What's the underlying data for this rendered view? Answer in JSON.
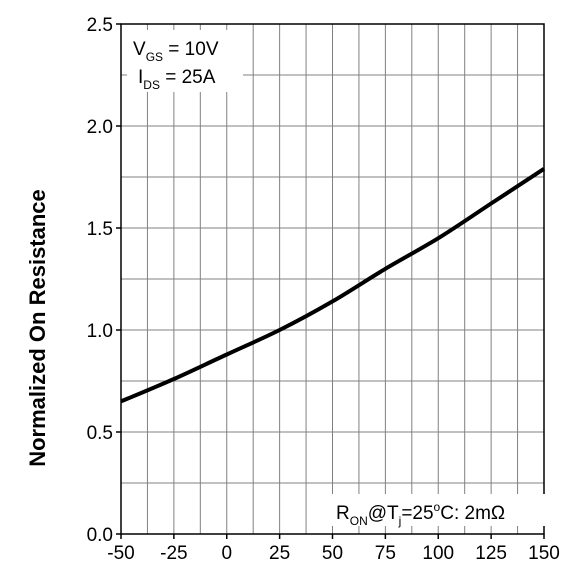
{
  "chart_data": {
    "type": "line",
    "title": "",
    "xlabel": "",
    "ylabel": "Normalized On Resistance",
    "xlim": [
      -50,
      150
    ],
    "ylim": [
      0.0,
      2.5
    ],
    "x_ticks": [
      "-50",
      "-25",
      "0",
      "25",
      "50",
      "75",
      "100",
      "125",
      "150"
    ],
    "y_ticks": [
      "0.0",
      "0.5",
      "1.0",
      "1.5",
      "2.0",
      "2.5"
    ],
    "grid": true,
    "series": [
      {
        "x": [
          -50,
          -25,
          0,
          25,
          50,
          75,
          100,
          125,
          150
        ],
        "y": [
          0.65,
          0.76,
          0.88,
          1.0,
          1.14,
          1.3,
          1.45,
          1.62,
          1.79
        ]
      }
    ],
    "annotations": {
      "conditions": {
        "vgs_main": "V",
        "vgs_sub": "GS",
        "vgs_rest": " = 10V",
        "ids_main": "I",
        "ids_sub": "DS",
        "ids_rest": " = 25A"
      },
      "ron": {
        "r_main": "R",
        "r_sub": "ON",
        "at_t": "@T",
        "t_sub": "j",
        "rest1": "=25",
        "deg": "o",
        "rest2": "C: 2mΩ"
      }
    },
    "colors": {
      "line": "#000000",
      "grid": "#808080",
      "axis": "#000000"
    }
  }
}
